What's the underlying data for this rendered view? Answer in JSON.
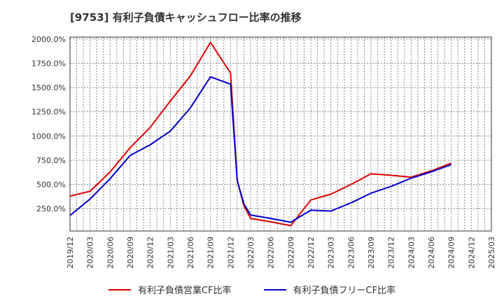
{
  "chart_data": {
    "type": "line",
    "title": "[9753]  有利子負債キャッシュフロー比率の推移",
    "xlabel": "",
    "ylabel": "",
    "x_ticks": [
      "2019/12",
      "2020/03",
      "2020/06",
      "2020/09",
      "2020/12",
      "2021/03",
      "2021/06",
      "2021/09",
      "2021/12",
      "2022/03",
      "2022/06",
      "2022/09",
      "2022/12",
      "2023/03",
      "2023/06",
      "2023/09",
      "2023/12",
      "2024/03",
      "2024/06",
      "2024/09",
      "2024/12",
      "2025/03"
    ],
    "y_ticks": [
      "250.0%",
      "500.0%",
      "750.0%",
      "1000.0%",
      "1250.0%",
      "1500.0%",
      "1750.0%",
      "2000.0%"
    ],
    "ylim": [
      20,
      2020
    ],
    "grid": true,
    "legend_position": "bottom",
    "series": [
      {
        "name": "有利子負債営業CF比率",
        "color": "#dd0000",
        "points": [
          [
            "2019/12",
            380
          ],
          [
            "2020/03",
            430
          ],
          [
            "2020/06",
            630
          ],
          [
            "2020/09",
            880
          ],
          [
            "2020/12",
            1090
          ],
          [
            "2021/03",
            1360
          ],
          [
            "2021/06",
            1620
          ],
          [
            "2021/09",
            1965
          ],
          [
            "2021/12",
            1650
          ],
          [
            "2022/01",
            540
          ],
          [
            "2022/02",
            280
          ],
          [
            "2022/03",
            150
          ],
          [
            "2022/06",
            115
          ],
          [
            "2022/09",
            75
          ],
          [
            "2022/12",
            340
          ],
          [
            "2023/03",
            400
          ],
          [
            "2023/06",
            500
          ],
          [
            "2023/09",
            610
          ],
          [
            "2023/12",
            595
          ],
          [
            "2024/03",
            575
          ],
          [
            "2024/06",
            640
          ],
          [
            "2024/09",
            720
          ]
        ]
      },
      {
        "name": "有利子負債フリーCF比率",
        "color": "#0000cc",
        "points": [
          [
            "2019/12",
            180
          ],
          [
            "2020/03",
            350
          ],
          [
            "2020/06",
            560
          ],
          [
            "2020/09",
            800
          ],
          [
            "2020/12",
            910
          ],
          [
            "2021/03",
            1050
          ],
          [
            "2021/06",
            1290
          ],
          [
            "2021/09",
            1610
          ],
          [
            "2021/12",
            1535
          ],
          [
            "2022/01",
            540
          ],
          [
            "2022/02",
            300
          ],
          [
            "2022/03",
            185
          ],
          [
            "2022/06",
            150
          ],
          [
            "2022/09",
            110
          ],
          [
            "2022/12",
            235
          ],
          [
            "2023/03",
            225
          ],
          [
            "2023/06",
            310
          ],
          [
            "2023/09",
            410
          ],
          [
            "2023/12",
            480
          ],
          [
            "2024/03",
            565
          ],
          [
            "2024/06",
            630
          ],
          [
            "2024/09",
            705
          ]
        ]
      }
    ]
  }
}
